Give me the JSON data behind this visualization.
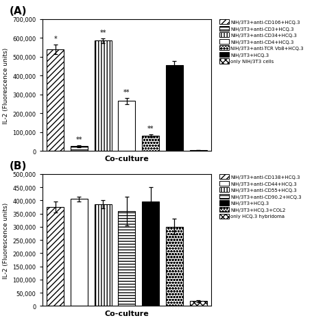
{
  "panel_A": {
    "panel_label": "(A)",
    "ylabel": "IL-2 (Fluorescence units)",
    "xlabel": "Co-culture",
    "ylim": [
      0,
      700000
    ],
    "yticks": [
      0,
      100000,
      200000,
      300000,
      400000,
      500000,
      600000,
      700000
    ],
    "bars": [
      {
        "value": 540000,
        "error": 25000,
        "hatch": "////",
        "color": "white",
        "edgecolor": "black",
        "label": "NIH/3T3+anti-CD106+HCQ.3",
        "sig": "*"
      },
      {
        "value": 25000,
        "error": 5000,
        "hatch": "----",
        "color": "white",
        "edgecolor": "black",
        "label": "NIH/3T3+anti-CD3+HCQ.3",
        "sig": "**"
      },
      {
        "value": 585000,
        "error": 12000,
        "hatch": "||||",
        "color": "white",
        "edgecolor": "black",
        "label": "NIH/3T3+anti-CD34+HCQ.3",
        "sig": "**"
      },
      {
        "value": 265000,
        "error": 15000,
        "hatch": "",
        "color": "white",
        "edgecolor": "black",
        "label": "NIH/3T3+anti-CD4+HCQ.3",
        "sig": "**"
      },
      {
        "value": 80000,
        "error": 8000,
        "hatch": "oooo",
        "color": "white",
        "edgecolor": "black",
        "label": "NIH/3T3+anti-TCR Vb8+HCQ.3",
        "sig": "**"
      },
      {
        "value": 455000,
        "error": 22000,
        "hatch": "",
        "color": "black",
        "edgecolor": "black",
        "label": "NIH/3T3+HCQ.3",
        "sig": ""
      },
      {
        "value": 5000,
        "error": 1000,
        "hatch": "xxxx",
        "color": "white",
        "edgecolor": "black",
        "label": "only NIH/3T3 cells",
        "sig": ""
      }
    ]
  },
  "panel_B": {
    "panel_label": "(B)",
    "ylabel": "IL-2 (Fluorescence units)",
    "xlabel": "Co-culture",
    "ylim": [
      0,
      500000
    ],
    "yticks": [
      0,
      50000,
      100000,
      150000,
      200000,
      250000,
      300000,
      350000,
      400000,
      450000,
      500000
    ],
    "bars": [
      {
        "value": 375000,
        "error": 22000,
        "hatch": "////",
        "color": "white",
        "edgecolor": "black",
        "label": "NIH/3T3+anti-CD138+HCQ.3"
      },
      {
        "value": 405000,
        "error": 8000,
        "hatch": "",
        "color": "white",
        "edgecolor": "black",
        "label": "NIH/3T3+anti-CD44+HCQ.3"
      },
      {
        "value": 385000,
        "error": 15000,
        "hatch": "||||",
        "color": "white",
        "edgecolor": "black",
        "label": "NIH/3T3+anti-CD55+HCQ.3"
      },
      {
        "value": 360000,
        "error": 55000,
        "hatch": "----",
        "color": "white",
        "edgecolor": "black",
        "label": "NIH/3T3+anti-CD90.2+HCQ.3"
      },
      {
        "value": 395000,
        "error": 55000,
        "hatch": "",
        "color": "black",
        "edgecolor": "black",
        "label": "NIH/3T3+HCQ.3"
      },
      {
        "value": 300000,
        "error": 30000,
        "hatch": "oooo",
        "color": "white",
        "edgecolor": "black",
        "label": "NIH/3T3+HCQ.3+COL2"
      },
      {
        "value": 18000,
        "error": 3000,
        "hatch": "xxxx",
        "color": "white",
        "edgecolor": "black",
        "label": "only HCQ.3 hybridoma"
      }
    ]
  },
  "fig_width": 4.74,
  "fig_height": 4.81,
  "dpi": 100
}
